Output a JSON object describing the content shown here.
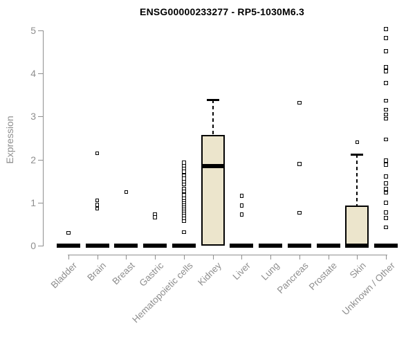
{
  "chart_data": {
    "type": "boxplot",
    "title": "ENSG00000233277 - RP5-1030M6.3",
    "ylabel": "Expression",
    "xlabel": "",
    "ylim": [
      0,
      5
    ],
    "yticks": [
      0,
      1,
      2,
      3,
      4,
      5
    ],
    "grid": false,
    "legend": "none",
    "categories": [
      "Bladder",
      "Brain",
      "Breast",
      "Gastric",
      "Hematopoietic cells",
      "Kidney",
      "Liver",
      "Lung",
      "Pancreas",
      "Prostate",
      "Skin",
      "Unknown / Other"
    ],
    "boxes": [
      {
        "name": "Bladder",
        "q1": 0,
        "median": 0,
        "q3": 0,
        "whisker_low": 0,
        "whisker_high": 0,
        "outliers": [
          0.3
        ]
      },
      {
        "name": "Brain",
        "q1": 0,
        "median": 0,
        "q3": 0,
        "whisker_low": 0,
        "whisker_high": 0,
        "outliers": [
          2.15,
          1.05,
          0.95,
          0.86
        ]
      },
      {
        "name": "Breast",
        "q1": 0,
        "median": 0,
        "q3": 0,
        "whisker_low": 0,
        "whisker_high": 0,
        "outliers": [
          1.25
        ]
      },
      {
        "name": "Gastric",
        "q1": 0,
        "median": 0,
        "q3": 0,
        "whisker_low": 0,
        "whisker_high": 0,
        "outliers": [
          0.72,
          0.66
        ]
      },
      {
        "name": "Hematopoietic cells",
        "q1": 0,
        "median": 0,
        "q3": 0,
        "whisker_low": 0,
        "whisker_high": 0,
        "outliers": [
          1.93,
          1.86,
          1.79,
          1.72,
          1.63,
          1.56,
          1.49,
          1.42,
          1.33,
          1.26,
          1.17,
          1.1,
          1.04,
          0.99,
          0.94,
          0.89,
          0.84,
          0.79,
          0.74,
          0.69,
          0.63,
          0.57,
          0.31
        ]
      },
      {
        "name": "Kidney",
        "q1": 0,
        "median": 1.85,
        "q3": 2.58,
        "whisker_low": 0,
        "whisker_high": 3.4,
        "outliers": []
      },
      {
        "name": "Liver",
        "q1": 0,
        "median": 0,
        "q3": 0,
        "whisker_low": 0,
        "whisker_high": 0,
        "outliers": [
          1.16,
          0.93,
          0.72
        ]
      },
      {
        "name": "Lung",
        "q1": 0,
        "median": 0,
        "q3": 0,
        "whisker_low": 0,
        "whisker_high": 0,
        "outliers": []
      },
      {
        "name": "Pancreas",
        "q1": 0,
        "median": 0,
        "q3": 0,
        "whisker_low": 0,
        "whisker_high": 0,
        "outliers": [
          3.32,
          1.9,
          0.76
        ]
      },
      {
        "name": "Prostate",
        "q1": 0,
        "median": 0,
        "q3": 0,
        "whisker_low": 0,
        "whisker_high": 0,
        "outliers": []
      },
      {
        "name": "Skin",
        "q1": 0,
        "median": 0,
        "q3": 0.93,
        "whisker_low": 0,
        "whisker_high": 2.12,
        "outliers": [
          2.4
        ]
      },
      {
        "name": "Unknown / Other",
        "q1": 0,
        "median": 0,
        "q3": 0,
        "whisker_low": 0,
        "whisker_high": 0,
        "outliers": [
          5.03,
          4.82,
          4.52,
          4.15,
          4.05,
          3.78,
          3.37,
          3.16,
          3.05,
          2.95,
          2.47,
          1.98,
          1.88,
          1.61,
          1.45,
          1.32,
          1.23,
          1.0,
          0.77,
          0.64,
          0.43
        ]
      }
    ],
    "colors": {
      "box_fill": "#ece5cc",
      "box_border": "#000000",
      "median": "#000000",
      "outlier_border": "#000000",
      "outlier_fill": "#ffffff",
      "axis": "#8e8e8e",
      "tick_label": "#8e8e8e",
      "title": "#000000",
      "background": "#ffffff"
    }
  }
}
